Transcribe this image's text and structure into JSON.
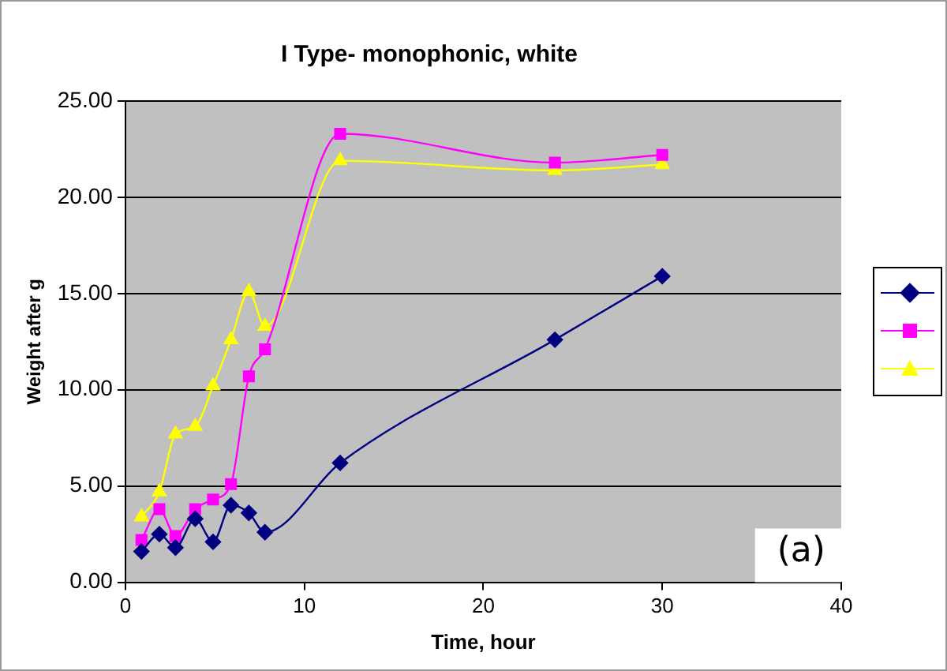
{
  "chart_data": {
    "type": "line",
    "title": "I Type- monophonic, white",
    "xlabel": "Time, hour",
    "ylabel": "Weight after g",
    "annotations": [
      "(a)"
    ],
    "series": [
      {
        "color": "#000080",
        "marker": "diamond",
        "x": [
          0.9,
          1.9,
          2.8,
          3.9,
          4.9,
          5.9,
          6.9,
          7.8,
          12,
          24,
          30
        ],
        "values": [
          1.6,
          2.5,
          1.8,
          3.3,
          2.1,
          4.0,
          3.6,
          2.6,
          6.2,
          12.6,
          15.9
        ]
      },
      {
        "color": "#ff00ff",
        "marker": "square",
        "x": [
          0.9,
          1.9,
          2.8,
          3.9,
          4.9,
          5.9,
          6.9,
          7.8,
          12,
          24,
          30
        ],
        "values": [
          2.2,
          3.8,
          2.4,
          3.8,
          4.3,
          5.1,
          10.7,
          12.1,
          23.3,
          21.8,
          22.2
        ]
      },
      {
        "color": "#ffff00",
        "marker": "triangle",
        "x": [
          0.9,
          1.9,
          2.8,
          3.9,
          4.9,
          5.9,
          6.9,
          7.8,
          12,
          24,
          30
        ],
        "values": [
          3.4,
          4.7,
          7.7,
          8.1,
          10.2,
          12.6,
          15.1,
          13.3,
          21.9,
          21.4,
          21.7
        ]
      }
    ],
    "xlim": [
      0,
      40
    ],
    "xticks": [
      0,
      10,
      20,
      30,
      40
    ],
    "ylim": [
      0,
      25
    ],
    "yticks": [
      {
        "value": 0,
        "label": "0.00"
      },
      {
        "value": 5,
        "label": "5.00"
      },
      {
        "value": 10,
        "label": "10.00"
      },
      {
        "value": 15,
        "label": "15.00"
      },
      {
        "value": 20,
        "label": "20.00"
      },
      {
        "value": 25,
        "label": "25.00"
      }
    ],
    "grid": "y"
  }
}
